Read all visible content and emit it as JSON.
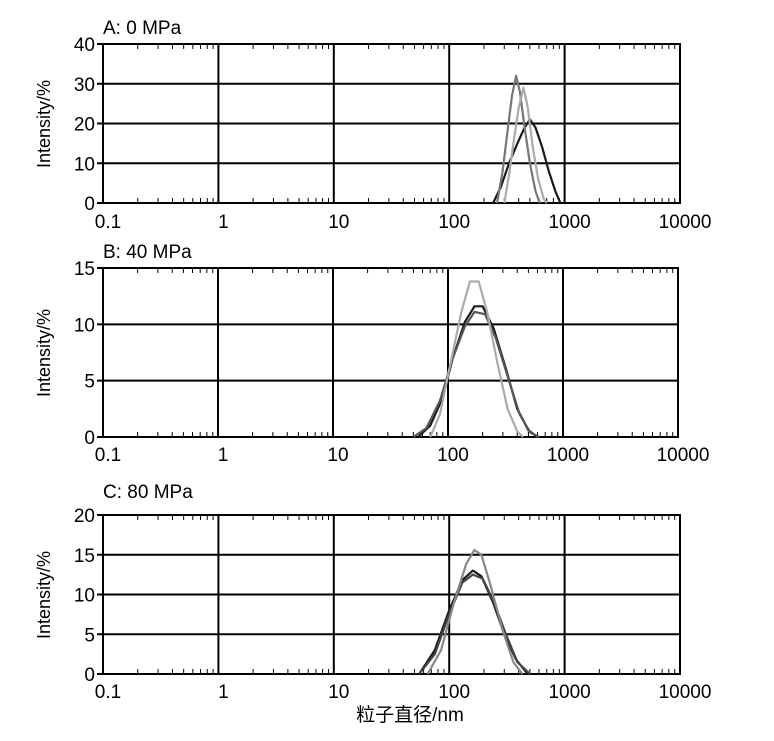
{
  "chart_data": [
    {
      "type": "line",
      "title": "A: 0 MPa",
      "xlabel": "",
      "ylabel": "Intensity/%",
      "xscale": "log",
      "xlim": [
        0.1,
        10000
      ],
      "ylim": [
        0,
        40
      ],
      "xticks": [
        "0.1",
        "1",
        "10",
        "100",
        "1000",
        "10000"
      ],
      "yticks": [
        "0",
        "10",
        "20",
        "30",
        "40"
      ],
      "grid": true,
      "series": [
        {
          "color": "#1a1a1a",
          "points": [
            [
              240,
              0
            ],
            [
              280,
              4
            ],
            [
              330,
              10
            ],
            [
              390,
              15
            ],
            [
              450,
              19
            ],
            [
              500,
              21
            ],
            [
              560,
              19
            ],
            [
              640,
              14
            ],
            [
              730,
              8
            ],
            [
              830,
              3
            ],
            [
              920,
              0
            ]
          ]
        },
        {
          "color": "#777777",
          "points": [
            [
              260,
              0
            ],
            [
              290,
              8
            ],
            [
              320,
              18
            ],
            [
              350,
              27
            ],
            [
              380,
              32
            ],
            [
              410,
              28
            ],
            [
              450,
              19
            ],
            [
              500,
              10
            ],
            [
              560,
              3
            ],
            [
              610,
              0
            ]
          ]
        },
        {
          "color": "#aaaaaa",
          "points": [
            [
              300,
              0
            ],
            [
              330,
              7
            ],
            [
              360,
              15
            ],
            [
              400,
              24
            ],
            [
              440,
              29
            ],
            [
              480,
              24
            ],
            [
              530,
              14
            ],
            [
              590,
              6
            ],
            [
              660,
              1
            ],
            [
              700,
              0
            ]
          ]
        }
      ]
    },
    {
      "type": "line",
      "title": "B: 40 MPa",
      "xlabel": "",
      "ylabel": "Intensity/%",
      "xscale": "log",
      "xlim": [
        0.1,
        10000
      ],
      "ylim": [
        0,
        15
      ],
      "xticks": [
        "0.1",
        "1",
        "10",
        "100",
        "1000",
        "10000"
      ],
      "yticks": [
        "0",
        "5",
        "10",
        "15"
      ],
      "grid": true,
      "series": [
        {
          "color": "#1a1a1a",
          "points": [
            [
              55,
              0
            ],
            [
              70,
              1
            ],
            [
              90,
              3.5
            ],
            [
              110,
              7
            ],
            [
              140,
              10.2
            ],
            [
              170,
              11.6
            ],
            [
              200,
              11.6
            ],
            [
              250,
              9.6
            ],
            [
              320,
              6
            ],
            [
              400,
              2.5
            ],
            [
              500,
              0.6
            ],
            [
              600,
              0
            ]
          ]
        },
        {
          "color": "#555555",
          "points": [
            [
              50,
              0
            ],
            [
              65,
              0.8
            ],
            [
              85,
              3.2
            ],
            [
              110,
              7
            ],
            [
              140,
              9.8
            ],
            [
              170,
              11.1
            ],
            [
              210,
              10.9
            ],
            [
              260,
              8.8
            ],
            [
              330,
              5.4
            ],
            [
              420,
              2
            ],
            [
              520,
              0.4
            ],
            [
              620,
              0
            ]
          ]
        },
        {
          "color": "#aaaaaa",
          "points": [
            [
              70,
              0
            ],
            [
              85,
              2
            ],
            [
              105,
              6.5
            ],
            [
              130,
              11
            ],
            [
              155,
              13.8
            ],
            [
              185,
              13.8
            ],
            [
              220,
              11
            ],
            [
              270,
              6.5
            ],
            [
              330,
              2.5
            ],
            [
              400,
              0.5
            ],
            [
              450,
              0
            ]
          ]
        }
      ]
    },
    {
      "type": "line",
      "title": "C: 80 MPa",
      "xlabel": "粒子直径/nm",
      "ylabel": "Intensity/%",
      "xscale": "log",
      "xlim": [
        0.1,
        10000
      ],
      "ylim": [
        0,
        20
      ],
      "xticks": [
        "0.1",
        "1",
        "10",
        "100",
        "1000",
        "10000"
      ],
      "yticks": [
        "0",
        "5",
        "10",
        "15",
        "20"
      ],
      "grid": true,
      "series": [
        {
          "color": "#1a1a1a",
          "points": [
            [
              55,
              0
            ],
            [
              75,
              3
            ],
            [
              100,
              8
            ],
            [
              130,
              11.8
            ],
            [
              160,
              13
            ],
            [
              190,
              12.3
            ],
            [
              240,
              9
            ],
            [
              300,
              5
            ],
            [
              380,
              1.8
            ],
            [
              480,
              0
            ]
          ]
        },
        {
          "color": "#444444",
          "points": [
            [
              55,
              0
            ],
            [
              75,
              2.5
            ],
            [
              100,
              7.5
            ],
            [
              130,
              11.5
            ],
            [
              160,
              12.5
            ],
            [
              195,
              12
            ],
            [
              245,
              9
            ],
            [
              310,
              5
            ],
            [
              390,
              1.5
            ],
            [
              500,
              0
            ]
          ]
        },
        {
          "color": "#888888",
          "points": [
            [
              65,
              0
            ],
            [
              85,
              3
            ],
            [
              110,
              9
            ],
            [
              140,
              13.8
            ],
            [
              165,
              15.6
            ],
            [
              190,
              15
            ],
            [
              230,
              11
            ],
            [
              290,
              5.5
            ],
            [
              360,
              1.5
            ],
            [
              430,
              0
            ]
          ]
        }
      ]
    }
  ]
}
